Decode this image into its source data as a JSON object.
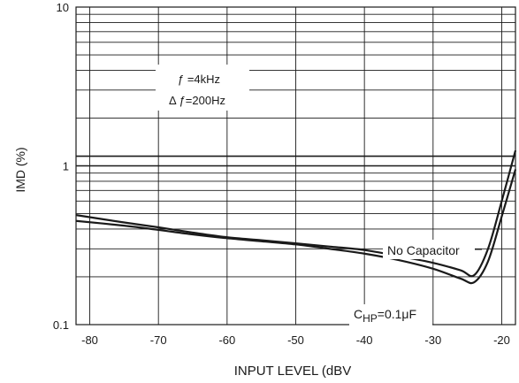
{
  "chart_data": {
    "type": "line",
    "xlabel": "INPUT LEVEL  (dBV",
    "ylabel": "IMD (%)",
    "xlim": [
      -82,
      -18
    ],
    "ylim": [
      0.1,
      10
    ],
    "y_scale": "log",
    "grid": true,
    "x_ticks": [
      -80,
      -70,
      -60,
      -50,
      -40,
      -30,
      -20
    ],
    "x_tick_labels": [
      "-80",
      "-70",
      "-60",
      "-50",
      "-40",
      "-30",
      "-20"
    ],
    "y_ticks": [
      0.1,
      1,
      10
    ],
    "y_tick_labels": [
      "0.1",
      "1",
      "10"
    ],
    "extra_horizontal_lines": [
      1.15
    ],
    "annotations": {
      "f_line": "ƒ =4kHz",
      "delta_f_line": "Δ ƒ=200Hz",
      "no_capacitor": "No Capacitor",
      "chp_main": "C",
      "chp_sub": "HP",
      "chp_value": "=0.1μF"
    },
    "series": [
      {
        "label": "No Capacitor",
        "x": [
          -82,
          -75,
          -70,
          -65,
          -60,
          -55,
          -50,
          -45,
          -40,
          -35,
          -30,
          -26,
          -24,
          -22,
          -20,
          -18
        ],
        "y": [
          0.49,
          0.44,
          0.41,
          0.38,
          0.355,
          0.34,
          0.325,
          0.31,
          0.295,
          0.27,
          0.245,
          0.22,
          0.205,
          0.3,
          0.6,
          1.25
        ]
      },
      {
        "label": "CHP=0.1μF",
        "x": [
          -82,
          -75,
          -70,
          -65,
          -60,
          -55,
          -50,
          -45,
          -40,
          -35,
          -30,
          -26,
          -24,
          -22,
          -20,
          -18
        ],
        "y": [
          0.45,
          0.42,
          0.395,
          0.37,
          0.35,
          0.335,
          0.32,
          0.3,
          0.28,
          0.255,
          0.225,
          0.195,
          0.185,
          0.25,
          0.48,
          0.95
        ]
      }
    ]
  }
}
